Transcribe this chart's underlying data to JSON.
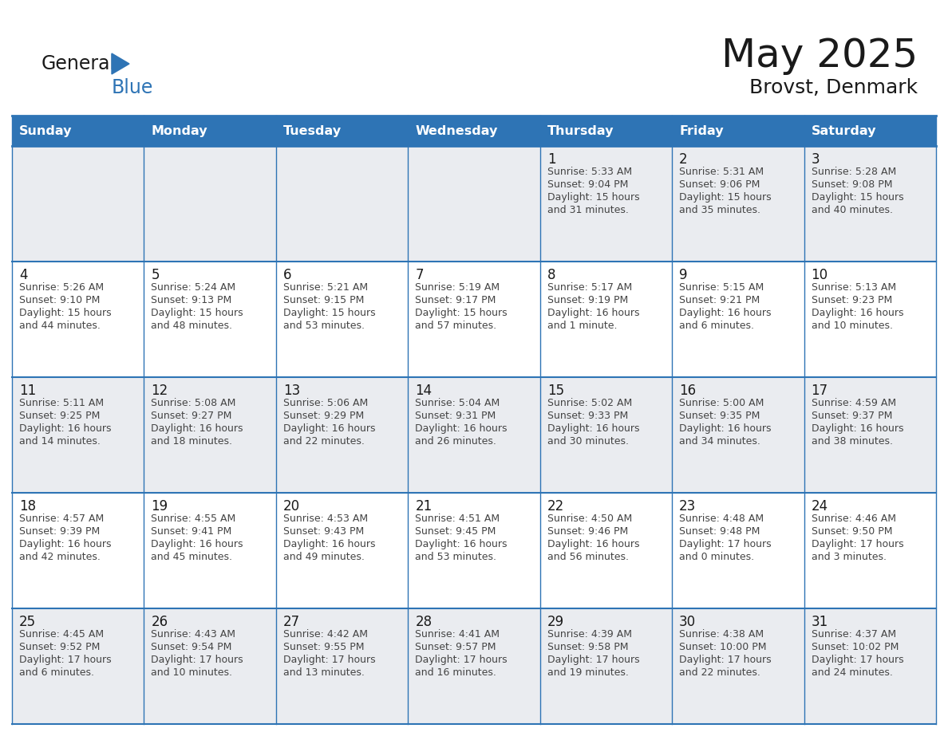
{
  "title": "May 2025",
  "subtitle": "Brovst, Denmark",
  "header_bg": "#2E74B5",
  "header_text": "#FFFFFF",
  "header_days": [
    "Sunday",
    "Monday",
    "Tuesday",
    "Wednesday",
    "Thursday",
    "Friday",
    "Saturday"
  ],
  "row_bg_odd": "#EAECF0",
  "row_bg_even": "#FFFFFF",
  "text_color": "#333333",
  "day_number_color": "#1a1a1a",
  "grid_color": "#2E74B5",
  "calendar": [
    [
      null,
      null,
      null,
      null,
      {
        "day": "1",
        "sunrise": "5:33 AM",
        "sunset": "9:04 PM",
        "daylight": "15 hours",
        "daylight2": "and 31 minutes."
      },
      {
        "day": "2",
        "sunrise": "5:31 AM",
        "sunset": "9:06 PM",
        "daylight": "15 hours",
        "daylight2": "and 35 minutes."
      },
      {
        "day": "3",
        "sunrise": "5:28 AM",
        "sunset": "9:08 PM",
        "daylight": "15 hours",
        "daylight2": "and 40 minutes."
      }
    ],
    [
      {
        "day": "4",
        "sunrise": "5:26 AM",
        "sunset": "9:10 PM",
        "daylight": "15 hours",
        "daylight2": "and 44 minutes."
      },
      {
        "day": "5",
        "sunrise": "5:24 AM",
        "sunset": "9:13 PM",
        "daylight": "15 hours",
        "daylight2": "and 48 minutes."
      },
      {
        "day": "6",
        "sunrise": "5:21 AM",
        "sunset": "9:15 PM",
        "daylight": "15 hours",
        "daylight2": "and 53 minutes."
      },
      {
        "day": "7",
        "sunrise": "5:19 AM",
        "sunset": "9:17 PM",
        "daylight": "15 hours",
        "daylight2": "and 57 minutes."
      },
      {
        "day": "8",
        "sunrise": "5:17 AM",
        "sunset": "9:19 PM",
        "daylight": "16 hours",
        "daylight2": "and 1 minute."
      },
      {
        "day": "9",
        "sunrise": "5:15 AM",
        "sunset": "9:21 PM",
        "daylight": "16 hours",
        "daylight2": "and 6 minutes."
      },
      {
        "day": "10",
        "sunrise": "5:13 AM",
        "sunset": "9:23 PM",
        "daylight": "16 hours",
        "daylight2": "and 10 minutes."
      }
    ],
    [
      {
        "day": "11",
        "sunrise": "5:11 AM",
        "sunset": "9:25 PM",
        "daylight": "16 hours",
        "daylight2": "and 14 minutes."
      },
      {
        "day": "12",
        "sunrise": "5:08 AM",
        "sunset": "9:27 PM",
        "daylight": "16 hours",
        "daylight2": "and 18 minutes."
      },
      {
        "day": "13",
        "sunrise": "5:06 AM",
        "sunset": "9:29 PM",
        "daylight": "16 hours",
        "daylight2": "and 22 minutes."
      },
      {
        "day": "14",
        "sunrise": "5:04 AM",
        "sunset": "9:31 PM",
        "daylight": "16 hours",
        "daylight2": "and 26 minutes."
      },
      {
        "day": "15",
        "sunrise": "5:02 AM",
        "sunset": "9:33 PM",
        "daylight": "16 hours",
        "daylight2": "and 30 minutes."
      },
      {
        "day": "16",
        "sunrise": "5:00 AM",
        "sunset": "9:35 PM",
        "daylight": "16 hours",
        "daylight2": "and 34 minutes."
      },
      {
        "day": "17",
        "sunrise": "4:59 AM",
        "sunset": "9:37 PM",
        "daylight": "16 hours",
        "daylight2": "and 38 minutes."
      }
    ],
    [
      {
        "day": "18",
        "sunrise": "4:57 AM",
        "sunset": "9:39 PM",
        "daylight": "16 hours",
        "daylight2": "and 42 minutes."
      },
      {
        "day": "19",
        "sunrise": "4:55 AM",
        "sunset": "9:41 PM",
        "daylight": "16 hours",
        "daylight2": "and 45 minutes."
      },
      {
        "day": "20",
        "sunrise": "4:53 AM",
        "sunset": "9:43 PM",
        "daylight": "16 hours",
        "daylight2": "and 49 minutes."
      },
      {
        "day": "21",
        "sunrise": "4:51 AM",
        "sunset": "9:45 PM",
        "daylight": "16 hours",
        "daylight2": "and 53 minutes."
      },
      {
        "day": "22",
        "sunrise": "4:50 AM",
        "sunset": "9:46 PM",
        "daylight": "16 hours",
        "daylight2": "and 56 minutes."
      },
      {
        "day": "23",
        "sunrise": "4:48 AM",
        "sunset": "9:48 PM",
        "daylight": "17 hours",
        "daylight2": "and 0 minutes."
      },
      {
        "day": "24",
        "sunrise": "4:46 AM",
        "sunset": "9:50 PM",
        "daylight": "17 hours",
        "daylight2": "and 3 minutes."
      }
    ],
    [
      {
        "day": "25",
        "sunrise": "4:45 AM",
        "sunset": "9:52 PM",
        "daylight": "17 hours",
        "daylight2": "and 6 minutes."
      },
      {
        "day": "26",
        "sunrise": "4:43 AM",
        "sunset": "9:54 PM",
        "daylight": "17 hours",
        "daylight2": "and 10 minutes."
      },
      {
        "day": "27",
        "sunrise": "4:42 AM",
        "sunset": "9:55 PM",
        "daylight": "17 hours",
        "daylight2": "and 13 minutes."
      },
      {
        "day": "28",
        "sunrise": "4:41 AM",
        "sunset": "9:57 PM",
        "daylight": "17 hours",
        "daylight2": "and 16 minutes."
      },
      {
        "day": "29",
        "sunrise": "4:39 AM",
        "sunset": "9:58 PM",
        "daylight": "17 hours",
        "daylight2": "and 19 minutes."
      },
      {
        "day": "30",
        "sunrise": "4:38 AM",
        "sunset": "10:00 PM",
        "daylight": "17 hours",
        "daylight2": "and 22 minutes."
      },
      {
        "day": "31",
        "sunrise": "4:37 AM",
        "sunset": "10:02 PM",
        "daylight": "17 hours",
        "daylight2": "and 24 minutes."
      }
    ]
  ]
}
